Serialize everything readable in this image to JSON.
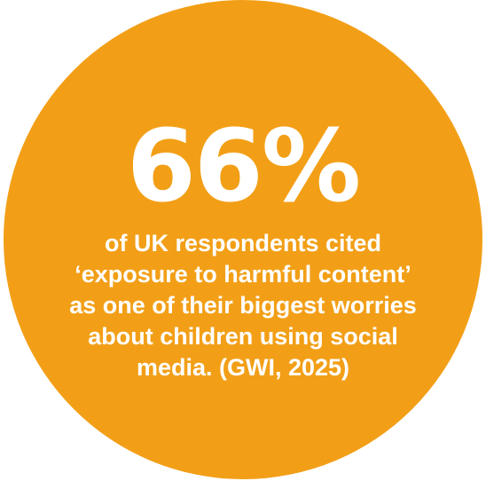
{
  "colors": {
    "circle": "#f29f17",
    "text": "#ffffff",
    "background": "#ffffff"
  },
  "stat": {
    "value": "66%"
  },
  "caption": {
    "lines": [
      "of UK respondents cited",
      "‘exposure to harmful content’",
      "as one of their biggest worries",
      "about children using social",
      "media. (GWI, 2025)"
    ]
  }
}
